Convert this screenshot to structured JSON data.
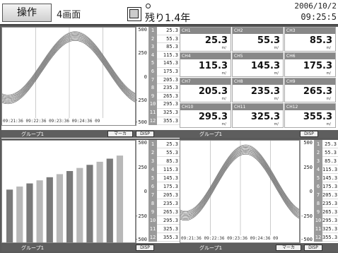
{
  "header": {
    "op_label": "操作",
    "view_label": "4画面",
    "remaining": "残り1.4年",
    "date": "2006/10/2",
    "time": "09:25:5",
    "media_icon": "cf-card-icon"
  },
  "colors": {
    "background": "#5a5a5a",
    "status_bar": "#5e5e5e",
    "channel_tab": "#9a9a9a",
    "trend_line": "#888888",
    "bar_dark": "#7a7a7a",
    "bar_light": "#b8b8b8"
  },
  "scale": {
    "labels": [
      "500",
      "250",
      "0",
      "-250",
      "-500"
    ]
  },
  "channels": [
    {
      "num": "1",
      "value": "25.3"
    },
    {
      "num": "2",
      "value": "55.3"
    },
    {
      "num": "3",
      "value": "85.3"
    },
    {
      "num": "4",
      "value": "115.3"
    },
    {
      "num": "5",
      "value": "145.3"
    },
    {
      "num": "6",
      "value": "175.3"
    },
    {
      "num": "7",
      "value": "205.3"
    },
    {
      "num": "8",
      "value": "235.3"
    },
    {
      "num": "9",
      "value": "265.3"
    },
    {
      "num": "10",
      "value": "295.3"
    },
    {
      "num": "11",
      "value": "325.3"
    },
    {
      "num": "12",
      "value": "355.3"
    }
  ],
  "digital": {
    "cells": [
      {
        "tag": "CH1",
        "value": "25.3",
        "unit": "m/"
      },
      {
        "tag": "CH2",
        "value": "55.3",
        "unit": "m/"
      },
      {
        "tag": "CH3",
        "value": "85.3",
        "unit": "m/"
      },
      {
        "tag": "CH4",
        "value": "115.3",
        "unit": "m/"
      },
      {
        "tag": "CH5",
        "value": "145.3",
        "unit": "m/"
      },
      {
        "tag": "CH6",
        "value": "175.3",
        "unit": "m/"
      },
      {
        "tag": "CH7",
        "value": "205.3",
        "unit": "m/"
      },
      {
        "tag": "CH8",
        "value": "235.3",
        "unit": "m/"
      },
      {
        "tag": "CH9",
        "value": "265.3",
        "unit": "m/"
      },
      {
        "tag": "CH10",
        "value": "295.3",
        "unit": "m/"
      },
      {
        "tag": "CH11",
        "value": "325.3",
        "unit": "m/"
      },
      {
        "tag": "CH12",
        "value": "355.3",
        "unit": "m/"
      }
    ]
  },
  "time_axis": [
    "09:21:36",
    "09:22:36",
    "09:23:36",
    "09:24:36",
    "09"
  ],
  "status_bars": {
    "tl": {
      "group": "グループ1",
      "marker": "マーカ",
      "disp": "DISP"
    },
    "tr": {
      "group": "グループ1",
      "disp": "DISP"
    },
    "bl": {
      "group": "グループ1",
      "disp": "DISP"
    },
    "br": {
      "group": "グループ1",
      "marker": "マーカ",
      "disp": "DISP"
    }
  },
  "chart_data": {
    "type": "bar",
    "categories": [
      "1",
      "2",
      "3",
      "4",
      "5",
      "6",
      "7",
      "8",
      "9",
      "10",
      "11",
      "12"
    ],
    "values": [
      25.3,
      55.3,
      85.3,
      115.3,
      145.3,
      175.3,
      205.3,
      235.3,
      265.3,
      295.3,
      325.3,
      355.3
    ],
    "ylim": [
      -500,
      500
    ]
  }
}
